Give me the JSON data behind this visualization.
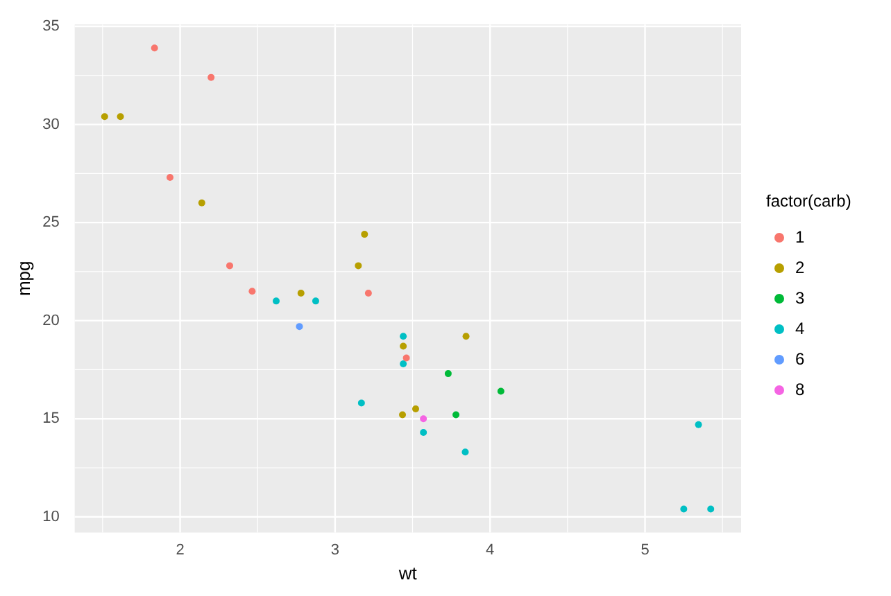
{
  "chart_data": {
    "type": "scatter",
    "xlabel": "wt",
    "ylabel": "mpg",
    "legend_title": "factor(carb)",
    "legend": "right",
    "grid": true,
    "marker": "circle",
    "xlim": [
      1.32,
      5.62
    ],
    "ylim": [
      9.2,
      35.1
    ],
    "xticks": [
      2,
      3,
      4,
      5
    ],
    "yticks": [
      10,
      15,
      20,
      25,
      30,
      35
    ],
    "series": [
      {
        "name": "1",
        "color": "#f8766d",
        "x": [
          2.32,
          3.215,
          3.46,
          2.2,
          1.835,
          2.465,
          1.935
        ],
        "values": [
          22.8,
          21.4,
          18.1,
          32.4,
          33.9,
          21.5,
          27.3
        ]
      },
      {
        "name": "2",
        "color": "#b79f00",
        "x": [
          3.44,
          3.19,
          3.15,
          1.615,
          3.52,
          3.435,
          3.845,
          2.14,
          1.513,
          2.78
        ],
        "values": [
          18.7,
          24.4,
          22.8,
          30.4,
          15.5,
          15.2,
          19.2,
          26.0,
          30.4,
          21.4
        ]
      },
      {
        "name": "3",
        "color": "#00ba38",
        "x": [
          4.07,
          3.73,
          3.78
        ],
        "values": [
          16.4,
          17.3,
          15.2
        ]
      },
      {
        "name": "4",
        "color": "#00bfc4",
        "x": [
          2.62,
          2.875,
          3.57,
          3.44,
          3.44,
          5.25,
          5.424,
          5.345,
          3.84,
          3.17
        ],
        "values": [
          21.0,
          21.0,
          14.3,
          19.2,
          17.8,
          10.4,
          10.4,
          14.7,
          13.3,
          15.8
        ]
      },
      {
        "name": "6",
        "color": "#619cff",
        "x": [
          2.77
        ],
        "values": [
          19.7
        ]
      },
      {
        "name": "8",
        "color": "#f564e3",
        "x": [
          3.57
        ],
        "values": [
          15.0
        ]
      }
    ]
  }
}
